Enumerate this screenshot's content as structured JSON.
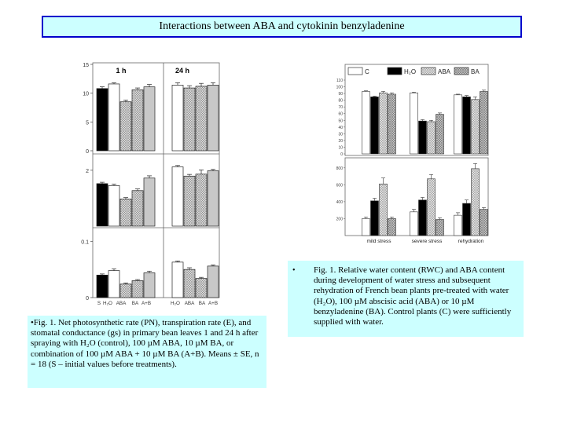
{
  "title": "Interactions between ABA and cytokinin benzyladenine",
  "chart_data": [
    {
      "type": "bar",
      "panel_time_labels": [
        "1 h",
        "24 h"
      ],
      "categories": [
        "S",
        "H2O",
        "ABA",
        "BA",
        "A+B",
        "H2O",
        "ABA",
        "BA",
        "A+B"
      ],
      "x_tick_labels": [
        "S",
        "H₂O",
        "ABA",
        "BA",
        "A+B",
        "H₂O",
        "ABA",
        "BA",
        "A+B"
      ],
      "panels": [
        {
          "ylim": [
            0,
            15
          ],
          "y_ticks": [
            0,
            5,
            10,
            15
          ],
          "y_tick_labels": [
            "0",
            "5",
            "10",
            "15"
          ],
          "values": [
            10.8,
            11.6,
            8.5,
            10.6,
            11.1,
            11.4,
            10.9,
            11.2,
            11.4
          ],
          "errors": [
            0.3,
            0.2,
            0.3,
            0.3,
            0.4,
            0.4,
            0.4,
            0.5,
            0.4
          ]
        },
        {
          "ylim": [
            0,
            2.5
          ],
          "y_ticks": [
            2
          ],
          "y_tick_labels": [
            "2"
          ],
          "values": [
            1.52,
            1.45,
            0.97,
            1.27,
            1.72,
            2.12,
            1.79,
            1.86,
            1.98
          ],
          "errors": [
            0.05,
            0.05,
            0.05,
            0.06,
            0.08,
            0.05,
            0.06,
            0.15,
            0.05
          ]
        },
        {
          "ylim": [
            0,
            0.12
          ],
          "y_ticks": [
            0,
            0.1
          ],
          "y_tick_labels": [
            "0",
            "0.1"
          ],
          "values": [
            0.04,
            0.048,
            0.024,
            0.03,
            0.044,
            0.063,
            0.05,
            0.034,
            0.056
          ],
          "errors": [
            0.002,
            0.003,
            0.002,
            0.002,
            0.003,
            0.002,
            0.003,
            0.002,
            0.002
          ]
        }
      ],
      "series_colors": [
        "#000000",
        "#ffffff",
        "hatch-cross",
        "hatch-cross",
        "#c8c8c8",
        "#ffffff",
        "hatch-cross",
        "hatch-cross",
        "#c8c8c8"
      ]
    },
    {
      "type": "bar",
      "legend": [
        "C",
        "H₂O",
        "ABA",
        "BA"
      ],
      "legend_placement": "top",
      "groups": [
        "mild stress",
        "severe stress",
        "rehydration"
      ],
      "series": [
        {
          "name": "C",
          "rwc": [
            93,
            91,
            88
          ],
          "aba": [
            200,
            280,
            240
          ]
        },
        {
          "name": "H₂O",
          "rwc": [
            85,
            49,
            85
          ],
          "aba": [
            410,
            420,
            380
          ]
        },
        {
          "name": "ABA",
          "rwc": [
            91,
            48,
            81
          ],
          "aba": [
            610,
            670,
            790
          ]
        },
        {
          "name": "BA",
          "rwc": [
            89,
            59,
            93
          ],
          "aba": [
            200,
            190,
            310
          ]
        }
      ],
      "top_panel": {
        "ylim": [
          0,
          110
        ],
        "y_ticks": [
          0,
          10,
          20,
          30,
          40,
          50,
          60,
          70,
          80,
          90,
          100,
          110
        ],
        "y_tick_labels": [
          "0",
          "10",
          "20",
          "30",
          "40",
          "50",
          "60",
          "70",
          "80",
          "90",
          "100",
          "110"
        ]
      },
      "bottom_panel": {
        "ylim": [
          0,
          900
        ],
        "y_ticks": [
          200,
          400,
          600,
          800
        ],
        "y_tick_labels": [
          "200",
          "400",
          "600",
          "800"
        ]
      }
    }
  ],
  "caption_left": "•Fig. 1. Net photosynthetic rate (PN), transpiration rate (E), and stomatal conductance (gs) in primary bean leaves 1 and 24 h after spraying with H₂O (control), 100 µM ABA, 10 µM BA, or combination of 100 µM ABA + 10 µM BA (A+B). Means ± SE, n = 18 (S – initial values before treatments).",
  "caption_right": "Fig. 1. Relative water content (RWC) and ABA content during development of water stress and subsequent rehydration of French bean plants pre-treated with water (H₂O), 100 µM abscisic acid (ABA) or 10 µM benzyladenine (BA). Control plants (C) were sufficiently supplied with water.",
  "bullet": "•"
}
